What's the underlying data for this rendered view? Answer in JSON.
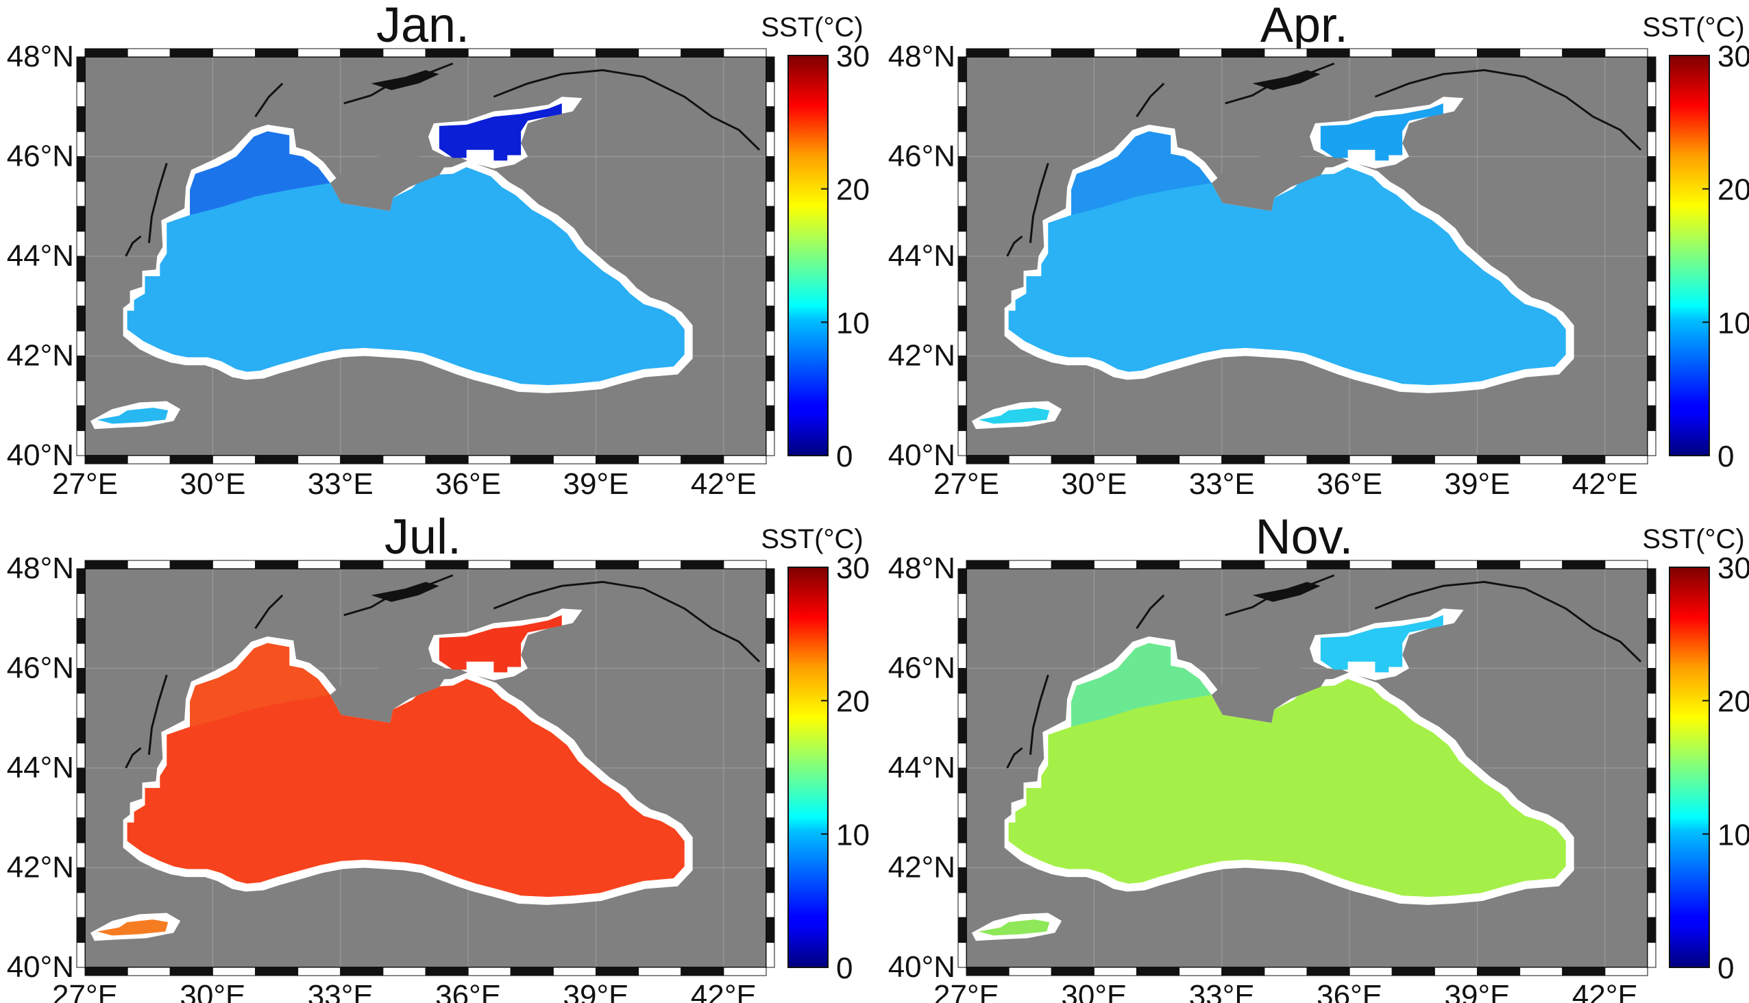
{
  "figure": {
    "colorbar": {
      "title": "SST(°C)",
      "ticks": [
        "30",
        "20",
        "10",
        "0"
      ],
      "range": [
        0,
        30
      ],
      "colormap": "jet"
    },
    "lat_labels": [
      "48°N",
      "46°N",
      "44°N",
      "42°N",
      "40°N"
    ],
    "lon_labels": [
      "27°E",
      "30°E",
      "33°E",
      "36°E",
      "39°E",
      "42°E"
    ],
    "lon_range": [
      27,
      43
    ],
    "lat_range": [
      40,
      48
    ],
    "land_color": "#808080",
    "coast_color": "#ffffff",
    "panels": [
      {
        "title": "Jan.",
        "sea_color": "#2aaef4",
        "azov_color": "#0b1fd6",
        "nw_color": "#1a6ae8",
        "marmara_color": "#27b8f2"
      },
      {
        "title": "Apr.",
        "sea_color": "#2ab2f4",
        "azov_color": "#1aa2f2",
        "nw_color": "#1e8eee",
        "marmara_color": "#27d2ef"
      },
      {
        "title": "Jul.",
        "sea_color": "#f7431d",
        "azov_color": "#f4361b",
        "nw_color": "#f55520",
        "marmara_color": "#f67c22"
      },
      {
        "title": "Nov.",
        "sea_color": "#a5f048",
        "azov_color": "#28c9f4",
        "nw_color": "#5fe8a0",
        "marmara_color": "#8ee85a"
      }
    ]
  }
}
